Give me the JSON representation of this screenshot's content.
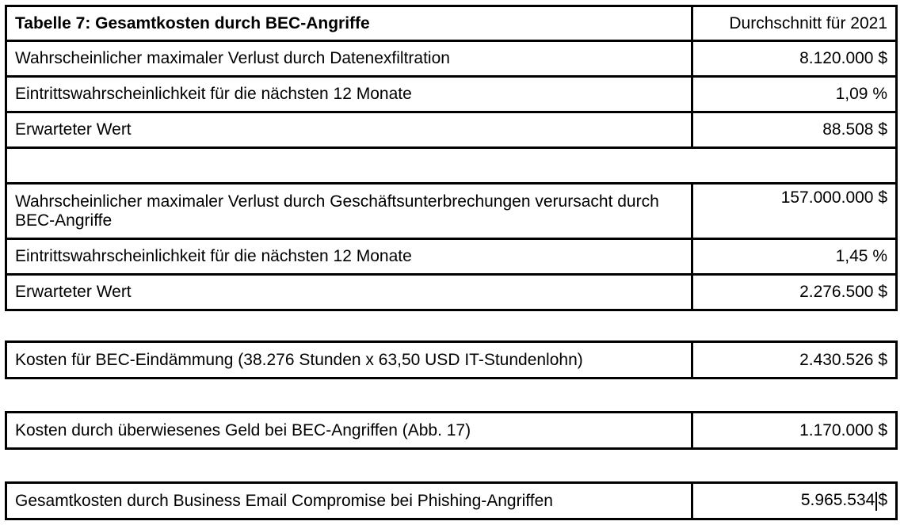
{
  "table": {
    "title": "Tabelle 7: Gesamtkosten durch BEC-Angriffe",
    "column_header": "Durchschnitt für 2021",
    "rows": [
      {
        "label": "Wahrscheinlicher maximaler Verlust durch Datenexfiltration",
        "value": "8.120.000 $"
      },
      {
        "label": "Eintrittswahrscheinlichkeit für die nächsten 12 Monate",
        "value": "1,09 %"
      },
      {
        "label": "Erwarteter Wert",
        "value": "88.508 $"
      },
      {
        "label": "",
        "value": ""
      },
      {
        "label": "Wahrscheinlicher maximaler Verlust durch Geschäftsunterbrechungen verursacht durch BEC-Angriffe",
        "value": "157.000.000 $"
      },
      {
        "label": "Eintrittswahrscheinlichkeit für die nächsten 12 Monate",
        "value": "1,45 %"
      },
      {
        "label": "Erwarteter Wert",
        "value": "2.276.500 $"
      }
    ]
  },
  "summary": [
    {
      "label": "Kosten für BEC-Eindämmung (38.276 Stunden x 63,50 USD IT-Stundenlohn)",
      "value": "2.430.526 $"
    },
    {
      "label": "Kosten durch überwiesenes Geld bei BEC-Angriffen (Abb. 17)",
      "value": "1.170.000 $"
    },
    {
      "label": "Gesamtkosten durch Business Email Compromise bei Phishing-Angriffen",
      "value_number": "5.965.534",
      "value_currency": "$"
    }
  ]
}
